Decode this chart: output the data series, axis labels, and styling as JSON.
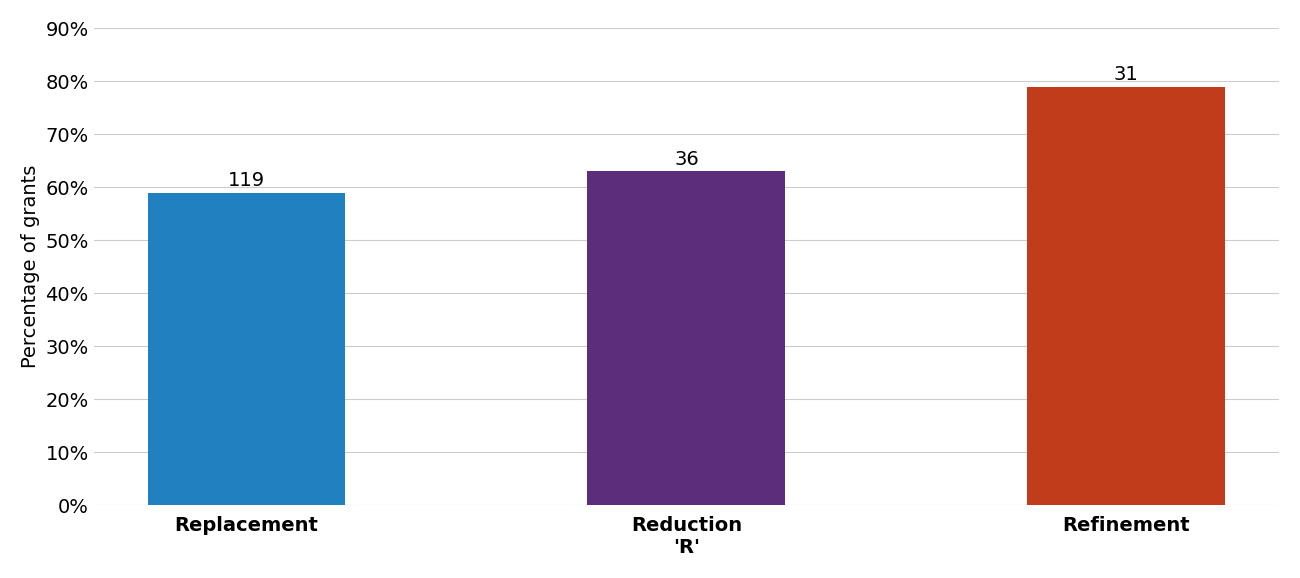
{
  "categories": [
    "Replacement",
    "Reduction\n'R'",
    "Refinement"
  ],
  "values": [
    59,
    63,
    79
  ],
  "labels": [
    119,
    36,
    31
  ],
  "bar_colors": [
    "#2080C0",
    "#5C2D7A",
    "#C03C1A"
  ],
  "ylabel": "Percentage of grants",
  "ylim": [
    0,
    90
  ],
  "yticks": [
    0,
    10,
    20,
    30,
    40,
    50,
    60,
    70,
    80,
    90
  ],
  "background_color": "#ffffff",
  "grid_color": "#cccccc",
  "tick_fontsize": 14,
  "ylabel_fontsize": 14,
  "bar_label_fontsize": 14,
  "bar_width": 0.45
}
